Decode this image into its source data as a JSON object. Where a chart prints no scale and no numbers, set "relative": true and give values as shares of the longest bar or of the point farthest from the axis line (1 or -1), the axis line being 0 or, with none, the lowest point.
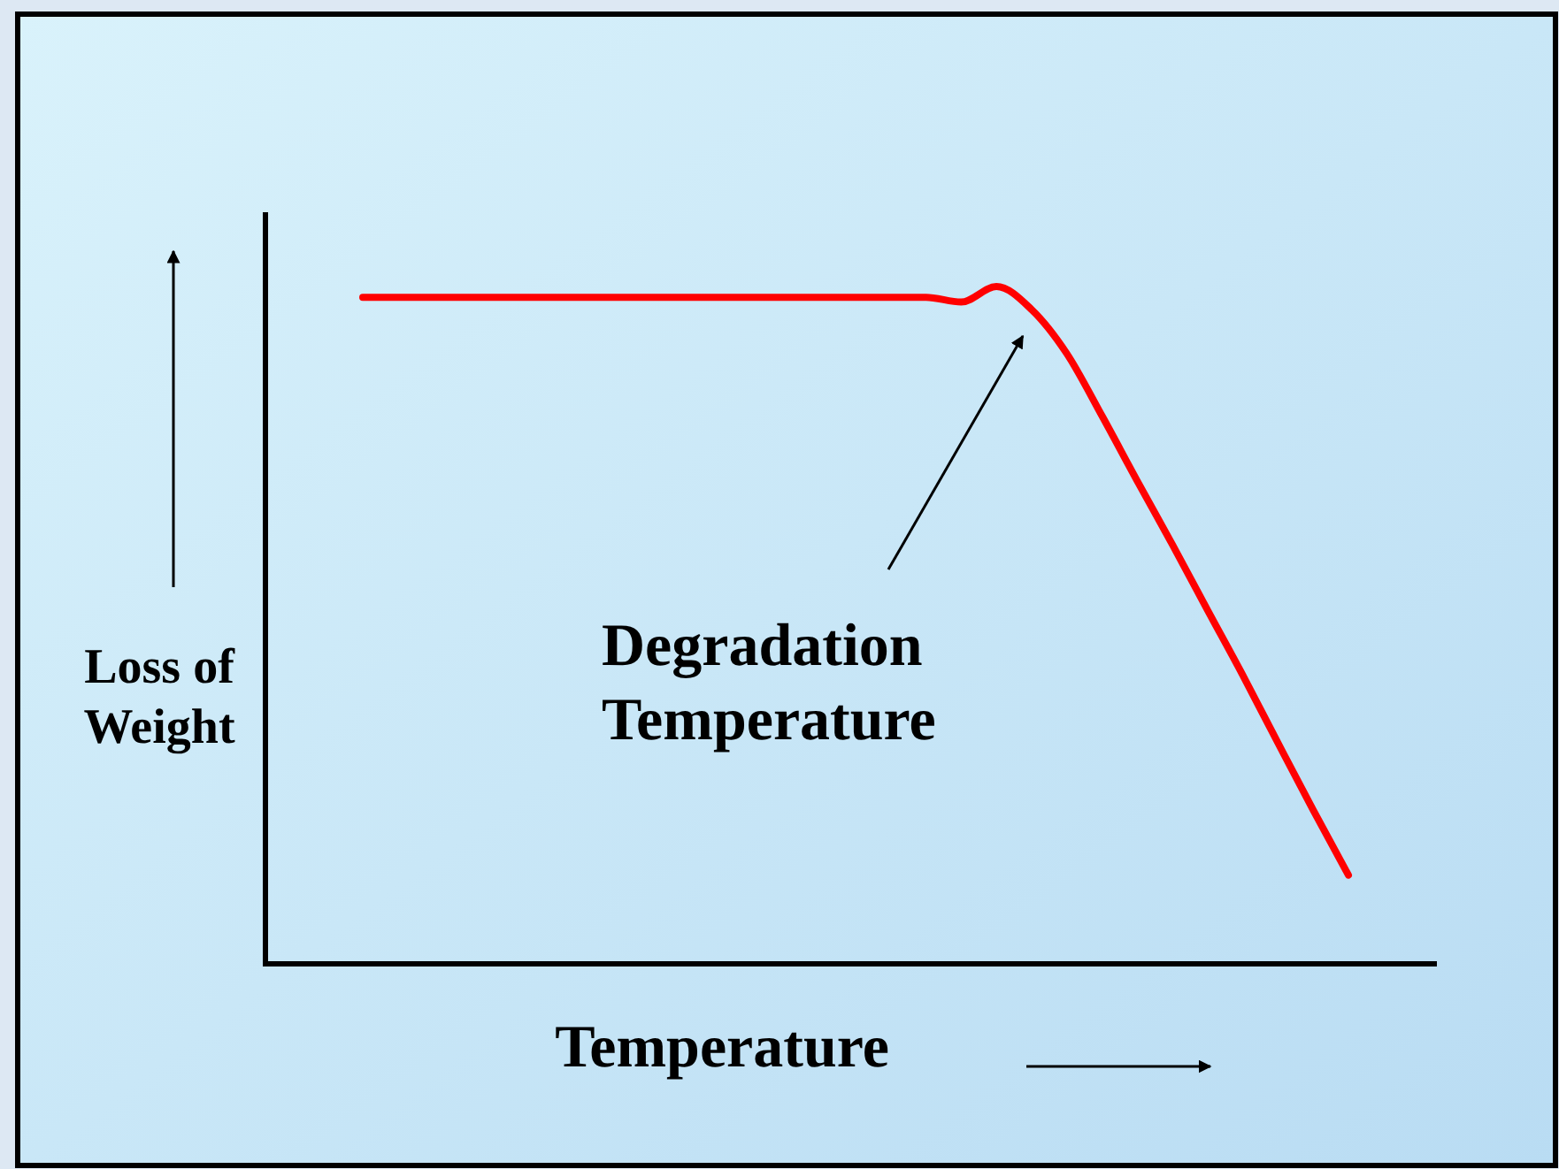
{
  "chart_data": {
    "type": "line",
    "relative": true,
    "xlabel": "Temperature",
    "ylabel": "Loss of Weight",
    "categories": [
      null,
      null,
      null,
      null,
      null,
      null,
      null,
      null,
      null,
      null,
      null,
      null,
      null,
      null,
      null,
      null,
      null,
      null,
      null,
      null,
      null,
      null,
      null,
      null,
      null,
      null,
      null,
      null,
      null
    ],
    "series": [
      {
        "color": "#ff0000",
        "values": [
          0.984,
          0.984,
          0.984,
          0.984,
          0.984,
          0.984,
          0.984,
          0.984,
          0.984,
          0.984,
          0.984,
          0.984,
          0.984,
          0.984,
          0.984,
          0.984,
          0.984,
          0.977,
          1.0,
          0.966,
          0.901,
          0.809,
          0.713,
          0.619,
          0.522,
          0.426,
          0.326,
          0.227,
          0.131
        ]
      }
    ],
    "annotations": [
      "Degradation Temperature"
    ],
    "line_style": "solid"
  }
}
